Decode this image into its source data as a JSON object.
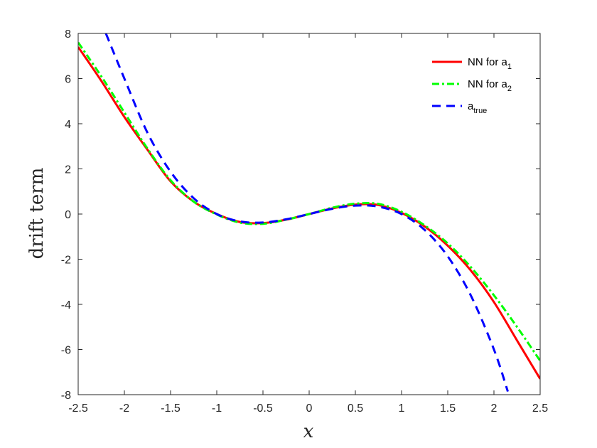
{
  "chart_data": {
    "type": "line",
    "xlabel": "x",
    "ylabel": "drift term",
    "xlim": [
      -2.5,
      2.5
    ],
    "ylim": [
      -8,
      8
    ],
    "xticks": [
      -2.5,
      -2,
      -1.5,
      -1,
      -0.5,
      0,
      0.5,
      1,
      1.5,
      2,
      2.5
    ],
    "xtick_labels": [
      "-2.5",
      "-2",
      "-1.5",
      "-1",
      "-0.5",
      "0",
      "0.5",
      "1",
      "1.5",
      "2",
      "2.5"
    ],
    "yticks": [
      -8,
      -6,
      -4,
      -2,
      0,
      2,
      4,
      6,
      8
    ],
    "ytick_labels": [
      "-8",
      "-6",
      "-4",
      "-2",
      "0",
      "2",
      "4",
      "6",
      "8"
    ],
    "grid": false,
    "legend_position": "top-right",
    "series": [
      {
        "name": "NN for a1",
        "label_main": "NN for a",
        "label_sub": "1",
        "color": "#ff0000",
        "style": "solid",
        "x": [
          -2.5,
          -2.25,
          -2.0,
          -1.75,
          -1.5,
          -1.25,
          -1.0,
          -0.75,
          -0.5,
          -0.25,
          0.0,
          0.25,
          0.5,
          0.75,
          1.0,
          1.25,
          1.5,
          1.75,
          2.0,
          2.25,
          2.5
        ],
        "y": [
          7.4,
          5.9,
          4.3,
          2.85,
          1.45,
          0.55,
          0.0,
          -0.35,
          -0.4,
          -0.25,
          0.0,
          0.25,
          0.42,
          0.4,
          0.05,
          -0.55,
          -1.4,
          -2.5,
          -3.9,
          -5.6,
          -7.3
        ]
      },
      {
        "name": "NN for a2",
        "label_main": "NN for a",
        "label_sub": "2",
        "color": "#00ff00",
        "style": "dashdot",
        "x": [
          -2.5,
          -2.25,
          -2.0,
          -1.75,
          -1.5,
          -1.25,
          -1.0,
          -0.75,
          -0.5,
          -0.25,
          0.0,
          0.25,
          0.5,
          0.75,
          1.0,
          1.25,
          1.5,
          1.75,
          2.0,
          2.25,
          2.5
        ],
        "y": [
          7.6,
          6.1,
          4.5,
          2.9,
          1.5,
          0.55,
          -0.02,
          -0.38,
          -0.43,
          -0.25,
          0.0,
          0.28,
          0.46,
          0.45,
          0.1,
          -0.5,
          -1.3,
          -2.35,
          -3.6,
          -5.0,
          -6.5
        ]
      },
      {
        "name": "a_true",
        "label_main": "a",
        "label_sub": "true",
        "color": "#0000ff",
        "style": "dashed",
        "x": [
          -2.2,
          -2.0,
          -1.75,
          -1.5,
          -1.25,
          -1.0,
          -0.75,
          -0.5,
          -0.25,
          0.0,
          0.25,
          0.5,
          0.75,
          1.0,
          1.25,
          1.5,
          1.75,
          2.0,
          2.15
        ],
        "y": [
          8.0,
          6.0,
          3.6,
          1.875,
          0.703,
          0.0,
          -0.328,
          -0.375,
          -0.234,
          0.0,
          0.234,
          0.375,
          0.328,
          0.0,
          -0.703,
          -1.875,
          -3.609,
          -6.0,
          -7.86
        ]
      }
    ]
  }
}
